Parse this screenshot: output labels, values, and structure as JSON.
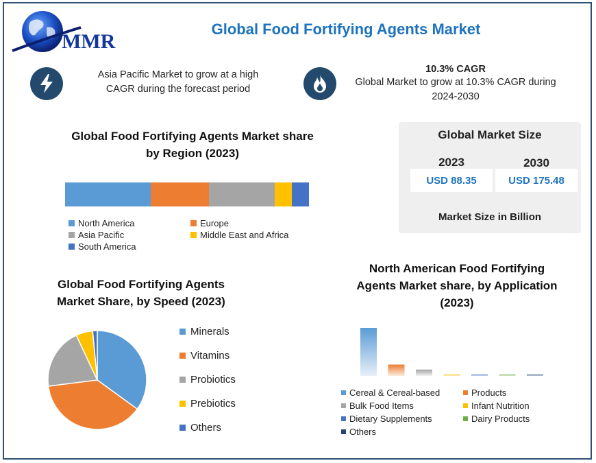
{
  "header": {
    "logo_text": "MMR",
    "title": "Global Food Fortifying Agents Market"
  },
  "highlights": [
    {
      "icon": "lightning-icon",
      "bold": "",
      "text": "Asia Pacific Market to grow at a high CAGR during the forecast period"
    },
    {
      "icon": "flame-icon",
      "bold": "10.3% CAGR",
      "text": "Global Market to grow at 10.3% CAGR during 2024-2030"
    }
  ],
  "market_size": {
    "title": "Global Market Size",
    "years": [
      {
        "year": "2023",
        "value": "USD 88.35"
      },
      {
        "year": "2030",
        "value": "USD 175.48"
      }
    ],
    "footnote": "Market Size in Billion"
  },
  "colors": {
    "title": "#1e73be",
    "icon_bg": "#23496c",
    "frame": "#2d4f73"
  },
  "chart_data": [
    {
      "type": "bar",
      "stacked": true,
      "orientation": "horizontal",
      "title": "Global Food Fortifying Agents Market share by Region (2023)",
      "categories": [
        "North America",
        "Europe",
        "Asia Pacific",
        "Middle East and Africa",
        "South America"
      ],
      "values": [
        35,
        24,
        27,
        7,
        7
      ],
      "colors": [
        "#5b9bd5",
        "#ed7d31",
        "#a5a5a5",
        "#ffc000",
        "#4472c4"
      ],
      "legend": "bottom"
    },
    {
      "type": "pie",
      "title": "Global Food Fortifying Agents Market Share, by Speed (2023)",
      "categories": [
        "Minerals",
        "Vitamins",
        "Probiotics",
        "Prebiotics",
        "Others"
      ],
      "values": [
        35,
        38,
        20,
        5.5,
        1.5
      ],
      "colors": [
        "#5b9bd5",
        "#ed7d31",
        "#a5a5a5",
        "#ffc000",
        "#4472c4"
      ],
      "legend": "right"
    },
    {
      "type": "bar",
      "title": "North American Food Fortifying Agents Market share, by Application (2023)",
      "categories": [
        "Cereal & Cereal-based",
        "Products",
        "Bulk Food Items",
        "Infant Nutrition",
        "Dietary Supplements",
        "Dairy Products",
        "Others"
      ],
      "values": [
        68,
        16,
        9,
        2,
        2,
        1,
        1
      ],
      "colors": [
        "#5b9bd5",
        "#ed7d31",
        "#a5a5a5",
        "#ffc000",
        "#4472c4",
        "#70ad47",
        "#264478"
      ],
      "legend": "bottom"
    }
  ]
}
